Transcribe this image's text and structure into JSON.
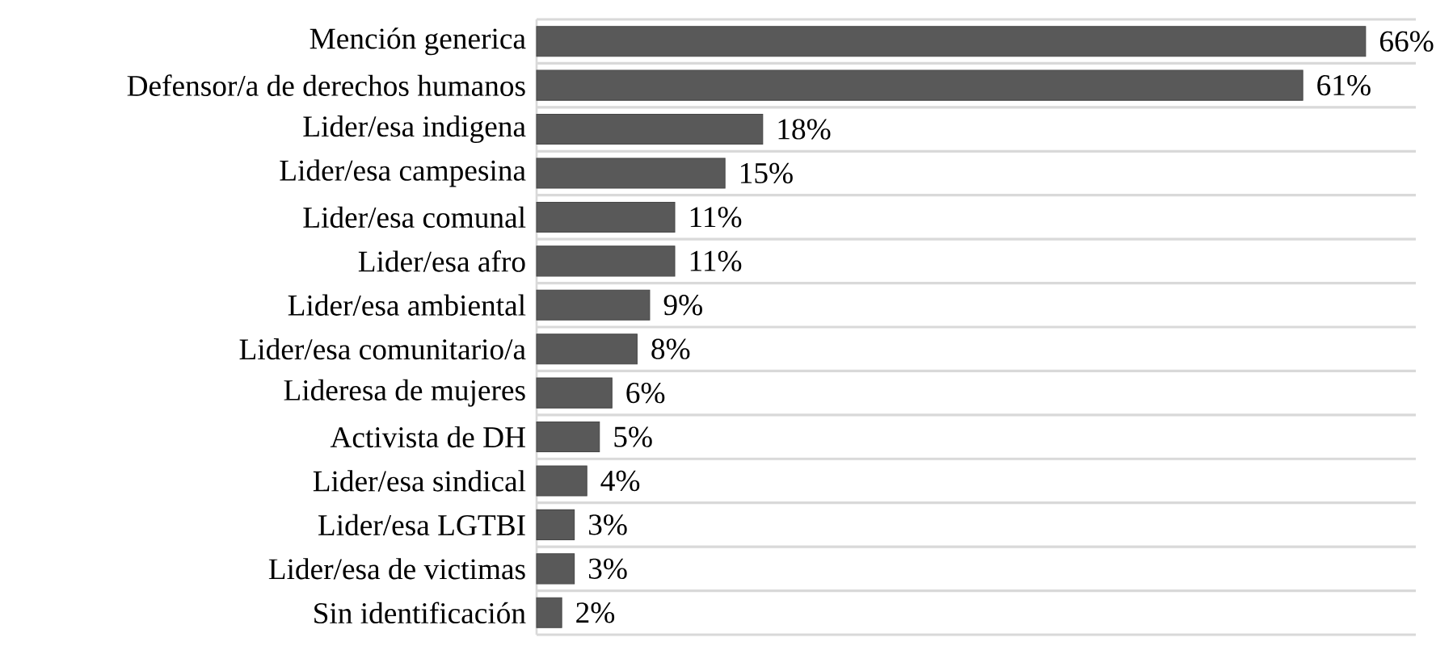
{
  "chart_data": {
    "type": "bar",
    "orientation": "horizontal",
    "categories": [
      "Mención generica",
      "Defensor/a de derechos humanos",
      "Lider/esa indigena",
      "Lider/esa campesina",
      "Lider/esa comunal",
      "Lider/esa afro",
      "Lider/esa ambiental",
      "Lider/esa comunitario/a",
      "Lideresa de mujeres",
      "Activista de DH",
      "Lider/esa sindical",
      "Lider/esa LGTBI",
      "Lider/esa de victimas",
      "Sin identificación"
    ],
    "values": [
      66,
      61,
      18,
      15,
      11,
      11,
      9,
      8,
      6,
      5,
      4,
      3,
      3,
      2
    ],
    "value_labels": [
      "66%",
      "61%",
      "18%",
      "15%",
      "11%",
      "11%",
      "9%",
      "8%",
      "6%",
      "5%",
      "4%",
      "3%",
      "3%",
      "2%"
    ],
    "color": "#595959",
    "xlim": [
      0,
      70
    ],
    "tick_labels": "y",
    "grid": "y"
  }
}
